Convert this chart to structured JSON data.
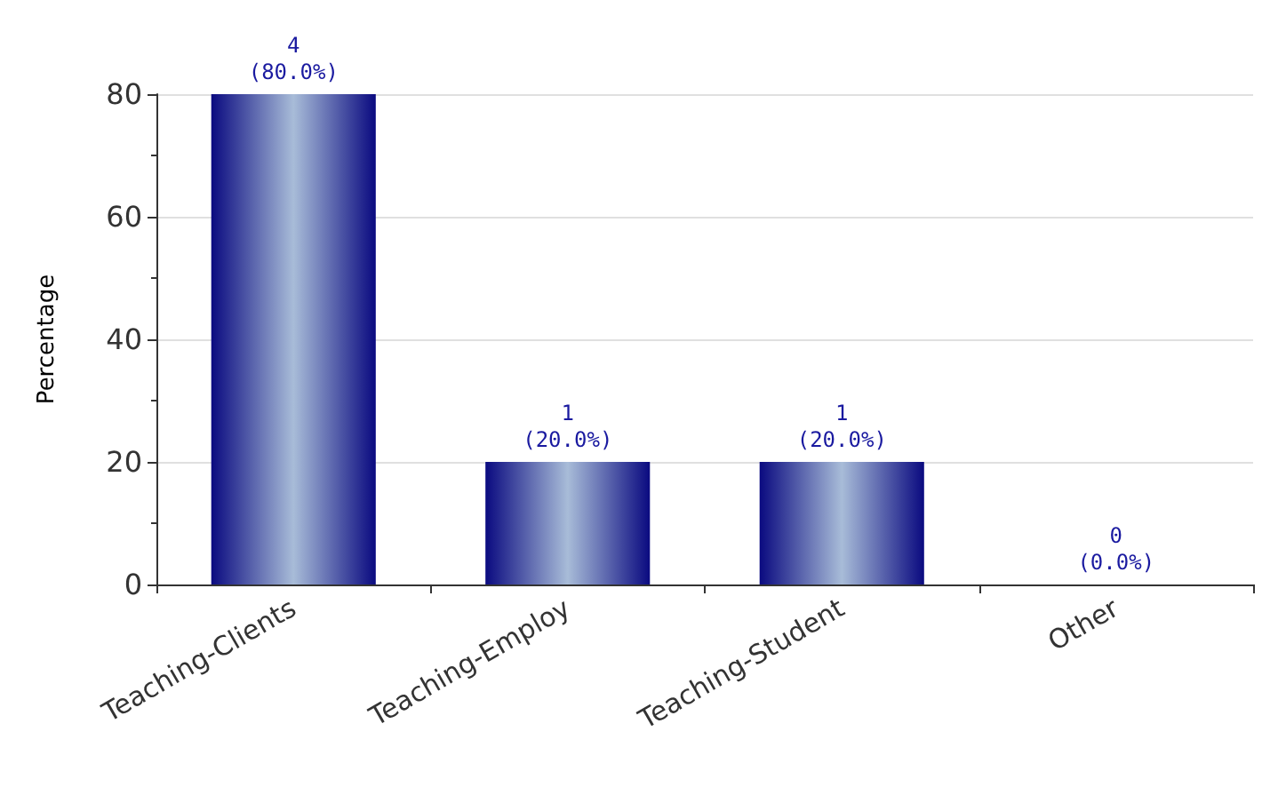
{
  "chart_data": {
    "type": "bar",
    "ylabel": "Percentage",
    "categories": [
      "Teaching-Clients",
      "Teaching-Employ",
      "Teaching-Student",
      "Other"
    ],
    "values": [
      80,
      20,
      20,
      0
    ],
    "value_labels": [
      "4\n(80.0%)",
      "1\n(20.0%)",
      "1\n(20.0%)",
      "0\n(0.0%)"
    ],
    "color": "#0a0a80",
    "ylim": [
      0,
      80
    ],
    "yticks": [
      0,
      20,
      40,
      60,
      80
    ],
    "grid": "y"
  }
}
